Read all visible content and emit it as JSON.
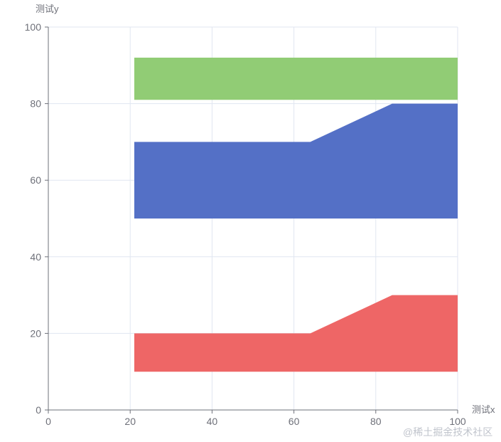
{
  "chart_data": {
    "type": "area",
    "xlabel": "测试x",
    "ylabel": "测试y",
    "xlim": [
      0,
      100
    ],
    "ylim": [
      0,
      100
    ],
    "xticks": [
      0,
      20,
      40,
      60,
      80,
      100
    ],
    "yticks": [
      0,
      20,
      40,
      60,
      80,
      100
    ],
    "grid": true,
    "series": [
      {
        "color": "#ee6666",
        "x": [
          21,
          64,
          84,
          100
        ],
        "upper": [
          20,
          20,
          30,
          30
        ],
        "lower": [
          10,
          10,
          10,
          10
        ]
      },
      {
        "color": "#5470c6",
        "x": [
          21,
          64,
          84,
          100
        ],
        "upper": [
          70,
          70,
          80,
          80
        ],
        "lower": [
          50,
          50,
          50,
          50
        ]
      },
      {
        "color": "#91cc75",
        "x": [
          21,
          100
        ],
        "upper": [
          92,
          92
        ],
        "lower": [
          81,
          81
        ]
      }
    ]
  },
  "watermark": "@稀土掘金技术社区"
}
